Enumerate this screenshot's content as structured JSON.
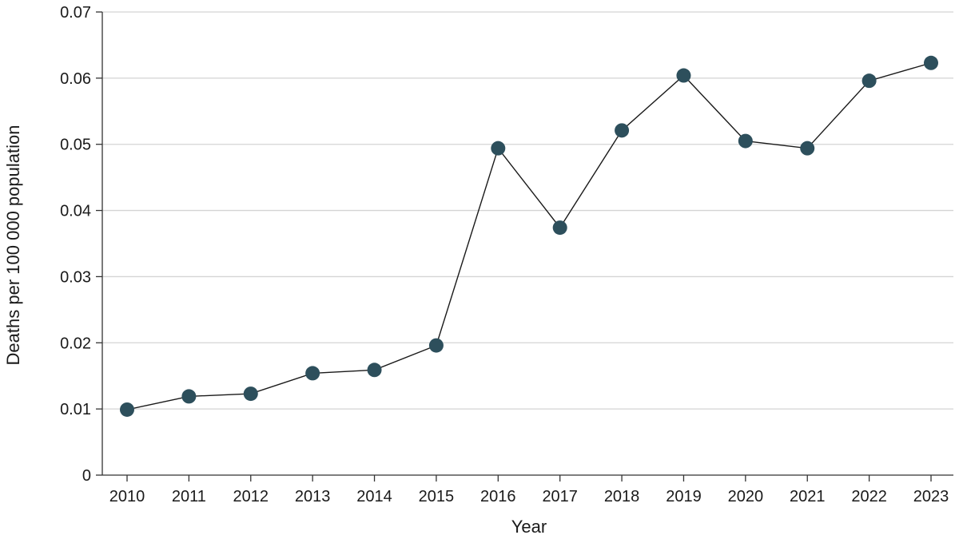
{
  "chart_data": {
    "type": "line",
    "xlabel": "Year",
    "ylabel": "Deaths per 100 000 population",
    "ylim": [
      0,
      0.07
    ],
    "yticks": [
      "0",
      "0.01",
      "0.02",
      "0.03",
      "0.04",
      "0.05",
      "0.06",
      "0.07"
    ],
    "grid": true,
    "series": [
      {
        "x": [
          "2010",
          "2011",
          "2012",
          "2013",
          "2014",
          "2015",
          "2016",
          "2017",
          "2018",
          "2019",
          "2020",
          "2021",
          "2022",
          "2023"
        ],
        "values": [
          0.0099,
          0.0119,
          0.0123,
          0.0154,
          0.0159,
          0.0196,
          0.0494,
          0.0374,
          0.0521,
          0.0604,
          0.0505,
          0.0494,
          0.0596,
          0.0623
        ]
      }
    ],
    "colors": {
      "marker": "#2d4f5c",
      "line": "#1a1a1a"
    }
  }
}
